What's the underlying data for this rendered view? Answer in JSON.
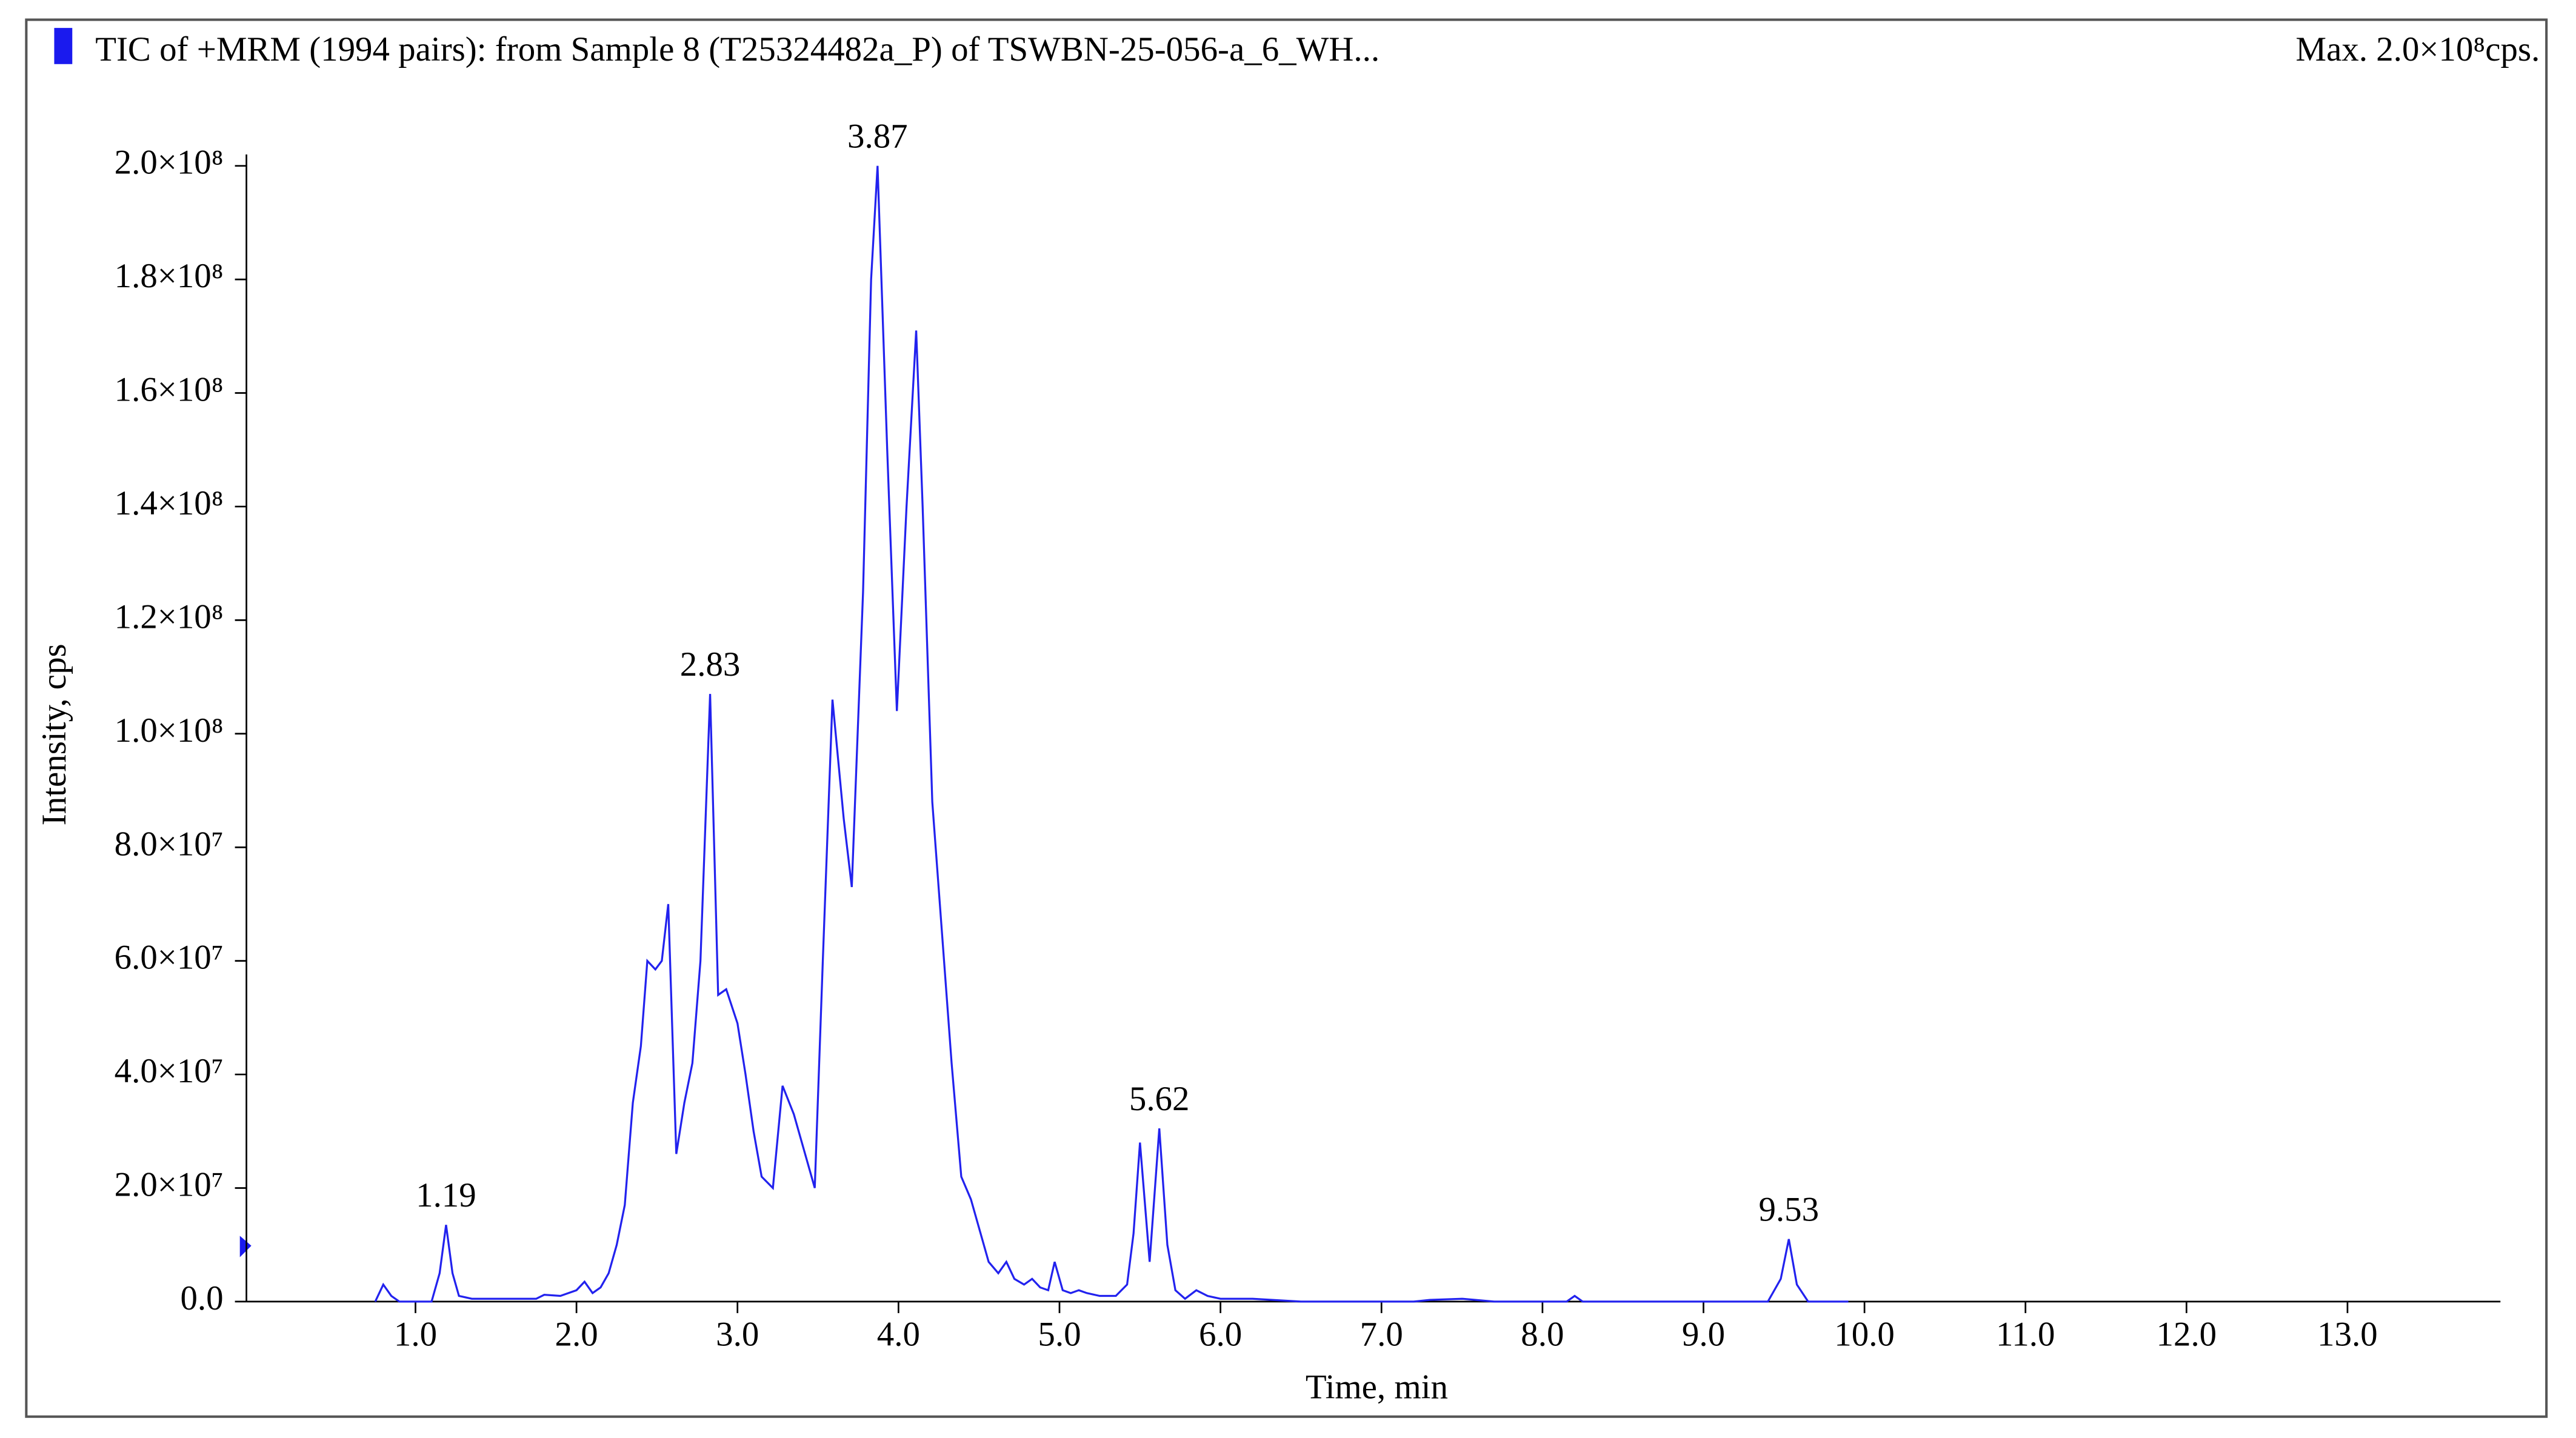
{
  "chart_data": {
    "type": "line",
    "title": "TIC of +MRM (1994 pairs): from Sample 8 (T25324482a_P) of TSWBN-25-056-a_6_WH...",
    "max_label": "Max. 2.0×10⁸cps.",
    "x_label": "Time, min",
    "y_label": "Intensity, cps",
    "color": "#2222ee",
    "xlim": [
      -0.05,
      13.95
    ],
    "ylim": [
      0,
      202000000
    ],
    "xticks": [
      {
        "value": 1,
        "label": "1.0"
      },
      {
        "value": 2,
        "label": "2.0"
      },
      {
        "value": 3,
        "label": "3.0"
      },
      {
        "value": 4,
        "label": "4.0"
      },
      {
        "value": 5,
        "label": "5.0"
      },
      {
        "value": 6,
        "label": "6.0"
      },
      {
        "value": 7,
        "label": "7.0"
      },
      {
        "value": 8,
        "label": "8.0"
      },
      {
        "value": 9,
        "label": "9.0"
      },
      {
        "value": 10,
        "label": "10.0"
      },
      {
        "value": 11,
        "label": "11.0"
      },
      {
        "value": 12,
        "label": "12.0"
      },
      {
        "value": 13,
        "label": "13.0"
      }
    ],
    "yticks": [
      {
        "value": 0,
        "label": "0.0"
      },
      {
        "value": 20000000,
        "label": "2.0×10⁷"
      },
      {
        "value": 40000000,
        "label": "4.0×10⁷"
      },
      {
        "value": 60000000,
        "label": "6.0×10⁷"
      },
      {
        "value": 80000000,
        "label": "8.0×10⁷"
      },
      {
        "value": 100000000,
        "label": "1.0×10⁸"
      },
      {
        "value": 120000000,
        "label": "1.2×10⁸"
      },
      {
        "value": 140000000,
        "label": "1.4×10⁸"
      },
      {
        "value": 160000000,
        "label": "1.6×10⁸"
      },
      {
        "value": 180000000,
        "label": "1.8×10⁸"
      },
      {
        "value": 200000000,
        "label": "2.0×10⁸"
      }
    ],
    "x": [
      0.75,
      0.8,
      0.85,
      0.9,
      1.1,
      1.15,
      1.19,
      1.23,
      1.27,
      1.35,
      1.5,
      1.75,
      1.8,
      1.9,
      2.0,
      2.05,
      2.1,
      2.15,
      2.2,
      2.25,
      2.3,
      2.35,
      2.4,
      2.44,
      2.49,
      2.53,
      2.57,
      2.62,
      2.67,
      2.72,
      2.77,
      2.83,
      2.88,
      2.93,
      3.0,
      3.05,
      3.1,
      3.15,
      3.22,
      3.28,
      3.35,
      3.4,
      3.48,
      3.53,
      3.59,
      3.66,
      3.71,
      3.78,
      3.83,
      3.87,
      3.93,
      3.99,
      4.05,
      4.11,
      4.15,
      4.21,
      4.27,
      4.33,
      4.39,
      4.45,
      4.5,
      4.56,
      4.62,
      4.67,
      4.72,
      4.78,
      4.83,
      4.88,
      4.93,
      4.97,
      5.02,
      5.07,
      5.12,
      5.17,
      5.25,
      5.35,
      5.42,
      5.46,
      5.5,
      5.56,
      5.62,
      5.67,
      5.72,
      5.78,
      5.85,
      5.92,
      6.0,
      6.2,
      6.5,
      7.2,
      7.3,
      7.5,
      7.7,
      8.15,
      8.2,
      8.25,
      9.4,
      9.48,
      9.53,
      9.58,
      9.65,
      9.9
    ],
    "values": [
      0,
      3000000,
      1000000,
      0,
      0,
      5000000,
      13500000,
      5000000,
      1000000,
      500000,
      500000,
      500000,
      1200000,
      1000000,
      2000000,
      3500000,
      1500000,
      2500000,
      5000000,
      10000000,
      17000000,
      35000000,
      45000000,
      60000000,
      58500000,
      60000000,
      70000000,
      26000000,
      35000000,
      42000000,
      60000000,
      107000000,
      54000000,
      55000000,
      49000000,
      40000000,
      30000000,
      22000000,
      20000000,
      38000000,
      33000000,
      28000000,
      20000000,
      60000000,
      106000000,
      85000000,
      73000000,
      125000000,
      180000000,
      200000000,
      150000000,
      104000000,
      140000000,
      171000000,
      140000000,
      88000000,
      65000000,
      42000000,
      22000000,
      18000000,
      13000000,
      7000000,
      5000000,
      7000000,
      4000000,
      3000000,
      4000000,
      2500000,
      2000000,
      7000000,
      2000000,
      1500000,
      2000000,
      1500000,
      1000000,
      1000000,
      3000000,
      12000000,
      28000000,
      7000000,
      30500000,
      10000000,
      2000000,
      500000,
      2000000,
      1000000,
      500000,
      500000,
      0,
      0,
      300000,
      500000,
      0,
      0,
      1000000,
      0,
      0,
      4000000,
      11000000,
      3000000,
      0,
      0
    ],
    "peaks": [
      1.19,
      2.83,
      3.87,
      5.62,
      9.53
    ]
  }
}
